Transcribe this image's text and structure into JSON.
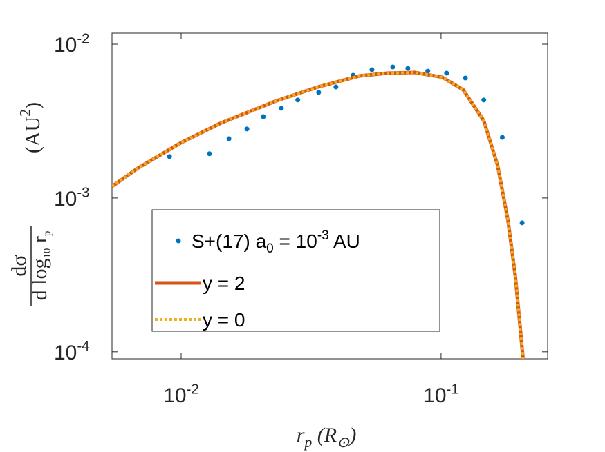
{
  "chart_data": {
    "type": "line",
    "xlabel": "r_{p} (R_{⊙})",
    "ylabel": {
      "numerator": "dσ",
      "denominator": "d log_{10} r_{p}",
      "unit": "(AU^{2})"
    },
    "xscale": "log",
    "yscale": "log",
    "xlim": [
      0.00542,
      0.257
    ],
    "ylim": [
      9e-05,
      0.0118
    ],
    "xticks": [
      {
        "value": 0.01,
        "label": "10^{-2}"
      },
      {
        "value": 0.1,
        "label": "10^{-1}"
      }
    ],
    "yticks": [
      {
        "value": 0.0001,
        "label": "10^{-4}"
      },
      {
        "value": 0.001,
        "label": "10^{-3}"
      },
      {
        "value": 0.01,
        "label": "10^{-2}"
      }
    ],
    "legend": "bottom-left",
    "series": [
      {
        "name": "S+(17) a_{0} = 10^{-3} AU",
        "color": "#0072BD",
        "mode": "markers",
        "x": [
          0.00902,
          0.01285,
          0.01527,
          0.01791,
          0.0207,
          0.0243,
          0.0281,
          0.0338,
          0.0394,
          0.0459,
          0.0542,
          0.0652,
          0.0745,
          0.0889,
          0.105,
          0.124,
          0.146,
          0.172,
          0.205
        ],
        "values": [
          0.00186,
          0.00194,
          0.00243,
          0.00281,
          0.00338,
          0.00383,
          0.00434,
          0.00486,
          0.00527,
          0.00628,
          0.00682,
          0.00711,
          0.00697,
          0.00668,
          0.00648,
          0.00603,
          0.00434,
          0.00248,
          0.00069
        ]
      },
      {
        "name": "y = 2",
        "color": "#D95319",
        "mode": "line",
        "dashed": false,
        "x": [
          0.00542,
          0.00684,
          0.01,
          0.01426,
          0.0233,
          0.0336,
          0.0485,
          0.0621,
          0.0793,
          0.101,
          0.1216,
          0.146,
          0.165,
          0.181,
          0.193,
          0.201,
          0.207
        ],
        "values": [
          0.00119,
          0.00157,
          0.00229,
          0.00308,
          0.00429,
          0.00527,
          0.00622,
          0.00648,
          0.00655,
          0.0061,
          0.00506,
          0.00318,
          0.00163,
          0.000711,
          0.000311,
          0.000151,
          8.8e-05
        ]
      },
      {
        "name": "y = 0",
        "color": "#EDB120",
        "mode": "line",
        "dashed": true,
        "x": [
          0.00542,
          0.00684,
          0.01,
          0.01426,
          0.0233,
          0.0336,
          0.0485,
          0.0621,
          0.0793,
          0.101,
          0.1216,
          0.146,
          0.165,
          0.181,
          0.193,
          0.201,
          0.207
        ],
        "values": [
          0.00119,
          0.00157,
          0.00229,
          0.00308,
          0.00429,
          0.00527,
          0.00622,
          0.00648,
          0.00655,
          0.0061,
          0.00506,
          0.00318,
          0.00163,
          0.000711,
          0.000311,
          0.000151,
          8.8e-05
        ]
      }
    ]
  }
}
